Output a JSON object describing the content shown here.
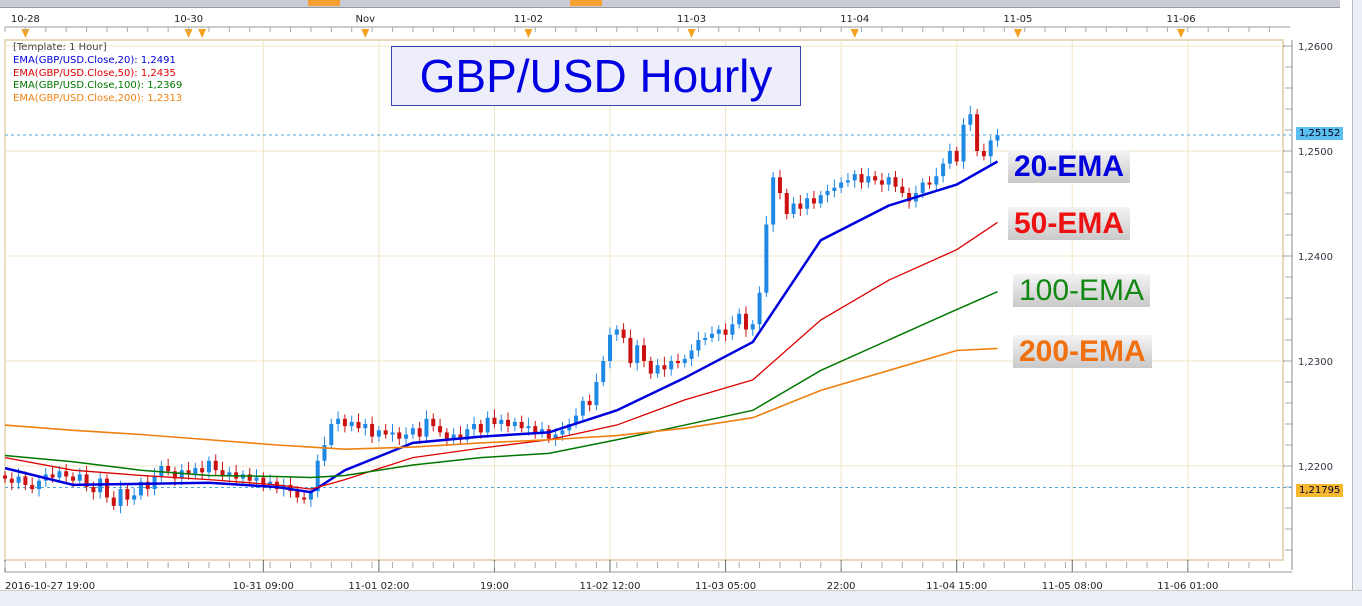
{
  "chart_data": {
    "type": "candlestick",
    "title": "GBP/USD Hourly",
    "template": "[Template: 1 Hour]",
    "ylim": [
      1.211,
      1.261
    ],
    "yticks": [
      "1,2200",
      "1,2300",
      "1,2400",
      "1,2500",
      "1,2600"
    ],
    "ytick_values": [
      1.22,
      1.23,
      1.24,
      1.25,
      1.26
    ],
    "xlim": [
      0,
      188
    ],
    "bottom_ticks": [
      {
        "i": 0,
        "label": "2016-10-27 19:00"
      },
      {
        "i": 38,
        "label": "10-31 09:00"
      },
      {
        "i": 55,
        "label": "11-01 02:00"
      },
      {
        "i": 72,
        "label": "19:00"
      },
      {
        "i": 89,
        "label": "11-02 12:00"
      },
      {
        "i": 106,
        "label": "11-03 05:00"
      },
      {
        "i": 123,
        "label": "22:00"
      },
      {
        "i": 140,
        "label": "11-04 15:00"
      },
      {
        "i": 157,
        "label": "11-05 08:00"
      },
      {
        "i": 174,
        "label": "11-06 01:00"
      }
    ],
    "top_ticks": [
      {
        "i": 3,
        "label": "10-28"
      },
      {
        "i": 27,
        "label": "10-30"
      },
      {
        "i": 53,
        "label": "Nov"
      },
      {
        "i": 77,
        "label": "11-02"
      },
      {
        "i": 101,
        "label": "11-03"
      },
      {
        "i": 125,
        "label": "11-04"
      },
      {
        "i": 149,
        "label": "11-05"
      },
      {
        "i": 173,
        "label": "11-06"
      }
    ],
    "price_lines": [
      {
        "value": 1.25152,
        "label": "1,25152"
      },
      {
        "value": 1.21795,
        "label": "1,21795"
      }
    ],
    "closes": [
      1.2188,
      1.2184,
      1.219,
      1.2182,
      1.2178,
      1.2186,
      1.2192,
      1.2189,
      1.2195,
      1.219,
      1.2186,
      1.2192,
      1.218,
      1.2175,
      1.2188,
      1.217,
      1.2162,
      1.2178,
      1.2168,
      1.2172,
      1.2185,
      1.2178,
      1.219,
      1.22,
      1.2195,
      1.2188,
      1.2196,
      1.2192,
      1.2198,
      1.2194,
      1.2205,
      1.2196,
      1.219,
      1.2194,
      1.2188,
      1.2192,
      1.2186,
      1.2189,
      1.2182,
      1.2185,
      1.2178,
      1.2182,
      1.2176,
      1.217,
      1.2168,
      1.2176,
      1.2205,
      1.222,
      1.224,
      1.2245,
      1.2238,
      1.2242,
      1.2236,
      1.224,
      1.2228,
      1.2234,
      1.223,
      1.2232,
      1.2226,
      1.223,
      1.2236,
      1.2228,
      1.2245,
      1.2238,
      1.2232,
      1.2226,
      1.223,
      1.2225,
      1.2235,
      1.224,
      1.2232,
      1.2246,
      1.224,
      1.2244,
      1.2238,
      1.2242,
      1.2236,
      1.2238,
      1.2232,
      1.2235,
      1.2226,
      1.223,
      1.2234,
      1.224,
      1.2248,
      1.2262,
      1.2258,
      1.228,
      1.23,
      1.2325,
      1.233,
      1.2322,
      1.2298,
      1.2315,
      1.23,
      1.2288,
      1.2296,
      1.2292,
      1.23,
      1.2298,
      1.2302,
      1.231,
      1.232,
      1.2322,
      1.2326,
      1.233,
      1.2325,
      1.2335,
      1.2345,
      1.233,
      1.2335,
      1.2365,
      1.243,
      1.2475,
      1.246,
      1.244,
      1.245,
      1.2445,
      1.2455,
      1.245,
      1.2458,
      1.2462,
      1.2465,
      1.247,
      1.2472,
      1.2478,
      1.247,
      1.2476,
      1.2472,
      1.2468,
      1.2475,
      1.2466,
      1.246,
      1.2452,
      1.246,
      1.247,
      1.2468,
      1.2476,
      1.2488,
      1.25,
      1.249,
      1.2525,
      1.2535,
      1.25,
      1.2495,
      1.251,
      1.2515
    ],
    "ema_index": [
      0,
      10,
      20,
      30,
      40,
      45,
      50,
      60,
      70,
      80,
      90,
      100,
      110,
      120,
      130,
      140,
      146
    ],
    "series": [
      {
        "name": "EMA(GBP/USD.Close,20)",
        "last": "1,2491",
        "color": "#0000dd",
        "values": [
          1.2198,
          1.2182,
          1.2183,
          1.2184,
          1.218,
          1.2175,
          1.2196,
          1.2222,
          1.2228,
          1.2232,
          1.2253,
          1.2284,
          1.2318,
          1.2415,
          1.2448,
          1.2468,
          1.249
        ]
      },
      {
        "name": "EMA(GBP/USD.Close,50)",
        "last": "1,2435",
        "color": "#dd0000",
        "values": [
          1.2208,
          1.2196,
          1.2191,
          1.2187,
          1.2182,
          1.2178,
          1.2187,
          1.2208,
          1.2217,
          1.2225,
          1.2239,
          1.2263,
          1.2282,
          1.2339,
          1.2377,
          1.2406,
          1.2432
        ]
      },
      {
        "name": "EMA(GBP/USD.Close,100)",
        "last": "1,2369",
        "color": "#007700",
        "values": [
          1.221,
          1.2204,
          1.2196,
          1.2191,
          1.219,
          1.2189,
          1.2191,
          1.2201,
          1.2208,
          1.2212,
          1.2225,
          1.2239,
          1.2253,
          1.2291,
          1.232,
          1.2349,
          1.2366
        ]
      },
      {
        "name": "EMA(GBP/USD.Close,200)",
        "last": "1,2313",
        "color": "#f08010",
        "values": [
          1.2239,
          1.2234,
          1.223,
          1.2225,
          1.222,
          1.2218,
          1.2216,
          1.2218,
          1.2222,
          1.2225,
          1.2229,
          1.2236,
          1.2246,
          1.2272,
          1.2291,
          1.231,
          1.2312
        ]
      }
    ],
    "annotations": [
      "20-EMA",
      "50-EMA",
      "100-EMA",
      "200-EMA"
    ],
    "up_color": "#1e88e5",
    "down_color": "#cc1111"
  }
}
